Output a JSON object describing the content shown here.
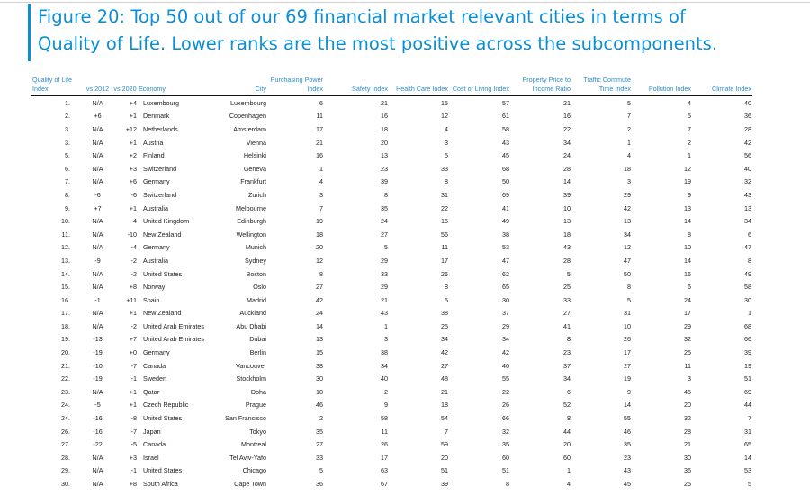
{
  "title": "Figure 20: Top 50 out of our 69 financial market relevant cities in terms of Quality of Life. Lower ranks are the most positive across the subcomponents.",
  "title_line1": "Figure 20: Top 50 out of our 69 financial market relevant cities in terms of",
  "title_line2": "Quality of Life. Lower ranks are the most positive across the subcomponents.",
  "headers": [
    "Quality of Life Index",
    "vs 2012",
    "vs 2020",
    "Economy",
    "City",
    "Purchasing Power Index",
    "Safety Index",
    "Health Care Index",
    "Cost of Living Index",
    "Property Price to Income Ratio",
    "Traffic Commute Time Index",
    "Pollution Index",
    "Climate Index"
  ],
  "rows": [
    [
      "1.",
      "N/A",
      "+4",
      "Luxembourg",
      "Luxembourg",
      "6",
      "21",
      "15",
      "57",
      "21",
      "5",
      "4",
      "40"
    ],
    [
      "2.",
      "+6",
      "+1",
      "Denmark",
      "Copenhagen",
      "11",
      "16",
      "12",
      "61",
      "16",
      "7",
      "5",
      "36"
    ],
    [
      "3.",
      "N/A",
      "+12",
      "Netherlands",
      "Amsterdam",
      "17",
      "18",
      "4",
      "58",
      "22",
      "2",
      "7",
      "28"
    ],
    [
      "3.",
      "N/A",
      "+1",
      "Austria",
      "Vienna",
      "21",
      "20",
      "3",
      "43",
      "34",
      "1",
      "2",
      "42"
    ],
    [
      "5.",
      "N/A",
      "+2",
      "Finland",
      "Helsinki",
      "16",
      "13",
      "5",
      "45",
      "24",
      "4",
      "1",
      "56"
    ],
    [
      "6.",
      "N/A",
      "+3",
      "Switzerland",
      "Geneva",
      "1",
      "23",
      "33",
      "68",
      "28",
      "18",
      "12",
      "40"
    ],
    [
      "7.",
      "N/A",
      "+6",
      "Germany",
      "Frankfurt",
      "4",
      "39",
      "8",
      "50",
      "14",
      "3",
      "19",
      "32"
    ],
    [
      "8.",
      "-6",
      "-6",
      "Switzerland",
      "Zurich",
      "3",
      "8",
      "31",
      "69",
      "39",
      "29",
      "9",
      "43"
    ],
    [
      "9.",
      "+7",
      "+1",
      "Australia",
      "Melbourne",
      "7",
      "35",
      "22",
      "41",
      "10",
      "42",
      "13",
      "13"
    ],
    [
      "10.",
      "N/A",
      "-4",
      "United Kingdom",
      "Edinburgh",
      "19",
      "24",
      "15",
      "49",
      "13",
      "13",
      "14",
      "34"
    ],
    [
      "11.",
      "N/A",
      "-10",
      "New Zealand",
      "Wellington",
      "18",
      "27",
      "56",
      "38",
      "18",
      "34",
      "8",
      "6"
    ],
    [
      "12.",
      "N/A",
      "-4",
      "Germany",
      "Munich",
      "20",
      "5",
      "11",
      "53",
      "43",
      "12",
      "10",
      "47"
    ],
    [
      "13.",
      "-9",
      "-2",
      "Australia",
      "Sydney",
      "12",
      "29",
      "17",
      "47",
      "28",
      "47",
      "14",
      "8"
    ],
    [
      "14.",
      "N/A",
      "-2",
      "United States",
      "Boston",
      "8",
      "33",
      "26",
      "62",
      "5",
      "50",
      "16",
      "49"
    ],
    [
      "15.",
      "N/A",
      "+8",
      "Norway",
      "Oslo",
      "27",
      "29",
      "8",
      "65",
      "25",
      "8",
      "6",
      "58"
    ],
    [
      "16.",
      "-1",
      "+11",
      "Spain",
      "Madrid",
      "42",
      "21",
      "5",
      "30",
      "33",
      "5",
      "24",
      "30"
    ],
    [
      "17.",
      "N/A",
      "+1",
      "New Zealand",
      "Auckland",
      "24",
      "43",
      "38",
      "37",
      "27",
      "31",
      "17",
      "1"
    ],
    [
      "18.",
      "N/A",
      "-2",
      "United Arab Emirates",
      "Abu Dhabi",
      "14",
      "1",
      "25",
      "29",
      "41",
      "10",
      "29",
      "68"
    ],
    [
      "19.",
      "-13",
      "+7",
      "United Arab Emirates",
      "Dubai",
      "13",
      "3",
      "34",
      "34",
      "8",
      "26",
      "32",
      "66"
    ],
    [
      "20.",
      "-19",
      "+0",
      "Germany",
      "Berlin",
      "15",
      "38",
      "42",
      "42",
      "23",
      "17",
      "25",
      "39"
    ],
    [
      "21.",
      "-10",
      "-7",
      "Canada",
      "Vancouver",
      "38",
      "34",
      "27",
      "40",
      "37",
      "27",
      "11",
      "19"
    ],
    [
      "22.",
      "-19",
      "-1",
      "Sweden",
      "Stockholm",
      "30",
      "40",
      "48",
      "55",
      "34",
      "19",
      "3",
      "51"
    ],
    [
      "23.",
      "N/A",
      "+1",
      "Qatar",
      "Doha",
      "10",
      "2",
      "21",
      "22",
      "6",
      "9",
      "45",
      "69"
    ],
    [
      "24.",
      "-5",
      "+1",
      "Czech Republic",
      "Prague",
      "46",
      "9",
      "18",
      "26",
      "52",
      "14",
      "20",
      "44"
    ],
    [
      "24.",
      "-16",
      "-8",
      "United States",
      "San Francisco",
      "2",
      "58",
      "54",
      "66",
      "8",
      "55",
      "32",
      "7"
    ],
    [
      "26.",
      "-16",
      "-7",
      "Japan",
      "Tokyo",
      "35",
      "11",
      "7",
      "32",
      "44",
      "46",
      "28",
      "31"
    ],
    [
      "27.",
      "-22",
      "-5",
      "Canada",
      "Montreal",
      "27",
      "26",
      "59",
      "35",
      "20",
      "35",
      "21",
      "65"
    ],
    [
      "28.",
      "N/A",
      "+3",
      "Israel",
      "Tel Aviv-Yafo",
      "33",
      "17",
      "20",
      "60",
      "60",
      "23",
      "30",
      "14"
    ],
    [
      "29.",
      "N/A",
      "-1",
      "United States",
      "Chicago",
      "5",
      "63",
      "51",
      "51",
      "1",
      "43",
      "36",
      "53"
    ],
    [
      "30.",
      "N/A",
      "+8",
      "South Africa",
      "Cape Town",
      "36",
      "67",
      "39",
      "8",
      "4",
      "45",
      "25",
      "5"
    ]
  ]
}
